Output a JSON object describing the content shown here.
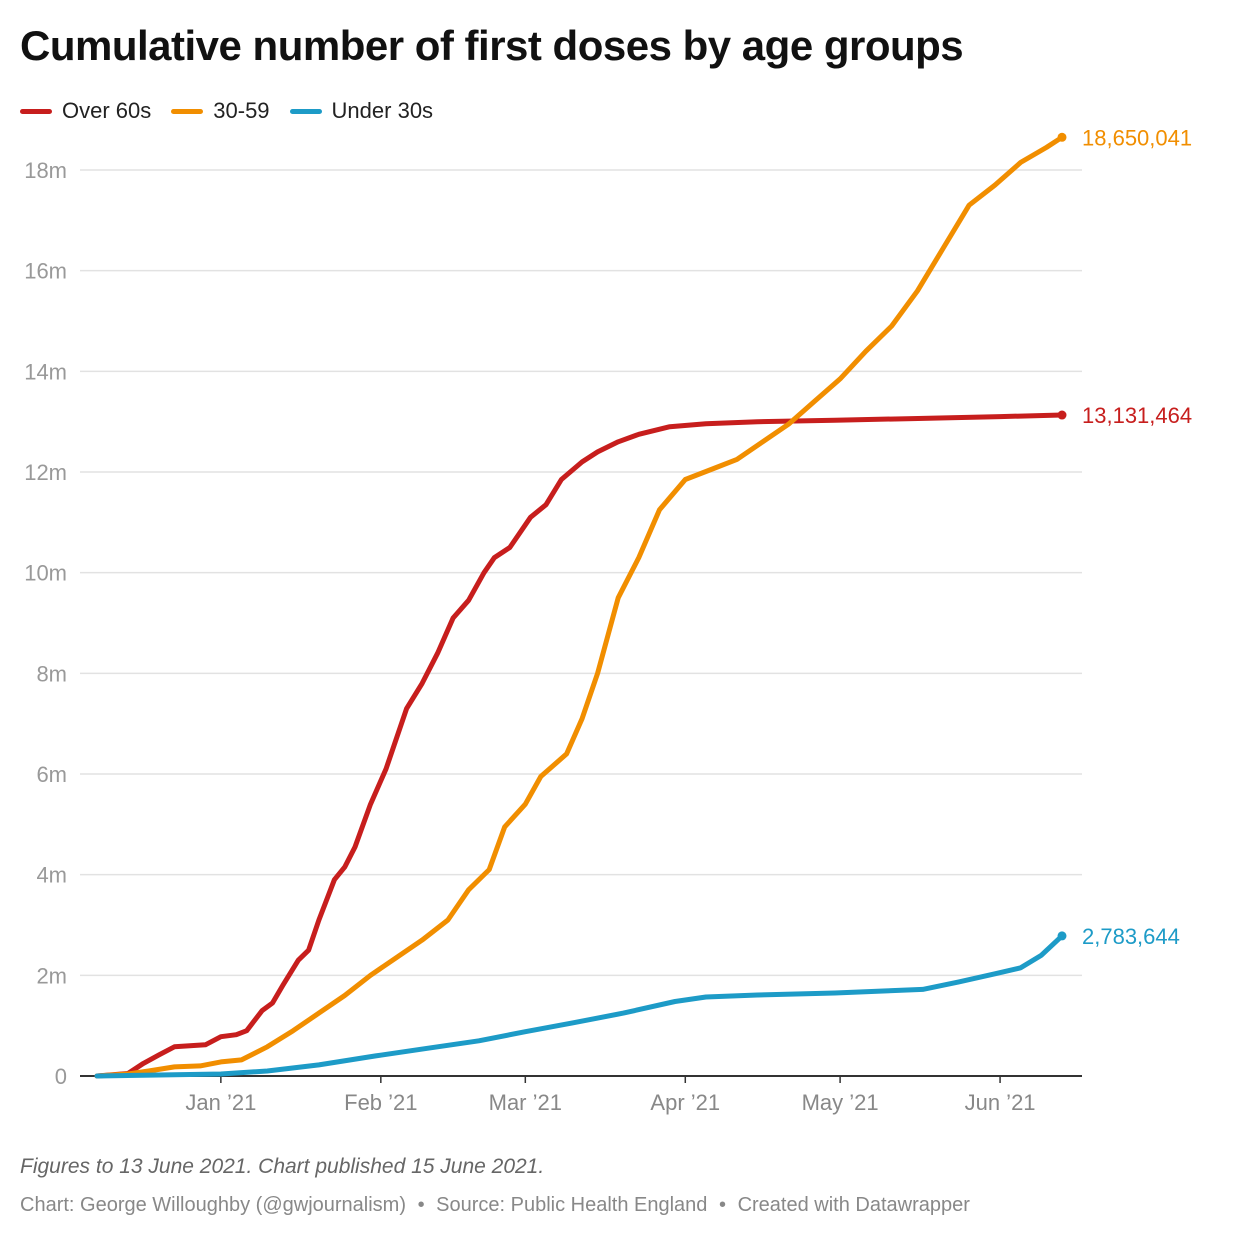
{
  "title": "Cumulative number of first doses by age groups",
  "note": "Figures to 13 June 2021. Chart published 15 June 2021.",
  "credit": {
    "chart": "Chart: George Willoughby (@gwjournalism)",
    "source": "Source: Public Health England",
    "tool": "Created with Datawrapper",
    "separator": "•"
  },
  "chart_data": {
    "type": "line",
    "title": "Cumulative number of first doses by age groups",
    "xlabel": "",
    "ylabel": "",
    "x_range": [
      "2020-12-08",
      "2021-06-13"
    ],
    "ylim": [
      0,
      19000000
    ],
    "y_ticks": [
      {
        "value": 0,
        "label": "0"
      },
      {
        "value": 2000000,
        "label": "2m"
      },
      {
        "value": 4000000,
        "label": "4m"
      },
      {
        "value": 6000000,
        "label": "6m"
      },
      {
        "value": 8000000,
        "label": "8m"
      },
      {
        "value": 10000000,
        "label": "10m"
      },
      {
        "value": 12000000,
        "label": "12m"
      },
      {
        "value": 14000000,
        "label": "14m"
      },
      {
        "value": 16000000,
        "label": "16m"
      },
      {
        "value": 18000000,
        "label": "18m"
      }
    ],
    "x_ticks": [
      {
        "date": "2021-01-01",
        "label": "Jan ’21"
      },
      {
        "date": "2021-02-01",
        "label": "Feb ’21"
      },
      {
        "date": "2021-03-01",
        "label": "Mar ’21"
      },
      {
        "date": "2021-04-01",
        "label": "Apr ’21"
      },
      {
        "date": "2021-05-01",
        "label": "May ’21"
      },
      {
        "date": "2021-06-01",
        "label": "Jun ’21"
      }
    ],
    "grid": true,
    "legend_position": "top-left",
    "series": [
      {
        "name": "Over 60s",
        "color": "#c71e1d",
        "end_label": "13,131,464",
        "points": [
          [
            "2020-12-08",
            0
          ],
          [
            "2020-12-14",
            50000
          ],
          [
            "2020-12-17",
            250000
          ],
          [
            "2020-12-20",
            420000
          ],
          [
            "2020-12-23",
            580000
          ],
          [
            "2020-12-26",
            600000
          ],
          [
            "2020-12-29",
            620000
          ],
          [
            "2021-01-01",
            780000
          ],
          [
            "2021-01-04",
            820000
          ],
          [
            "2021-01-06",
            900000
          ],
          [
            "2021-01-09",
            1300000
          ],
          [
            "2021-01-11",
            1450000
          ],
          [
            "2021-01-13",
            1800000
          ],
          [
            "2021-01-16",
            2300000
          ],
          [
            "2021-01-18",
            2500000
          ],
          [
            "2021-01-20",
            3100000
          ],
          [
            "2021-01-23",
            3900000
          ],
          [
            "2021-01-25",
            4150000
          ],
          [
            "2021-01-27",
            4550000
          ],
          [
            "2021-01-30",
            5400000
          ],
          [
            "2021-02-02",
            6100000
          ],
          [
            "2021-02-06",
            7300000
          ],
          [
            "2021-02-09",
            7800000
          ],
          [
            "2021-02-12",
            8400000
          ],
          [
            "2021-02-15",
            9100000
          ],
          [
            "2021-02-18",
            9450000
          ],
          [
            "2021-02-21",
            10000000
          ],
          [
            "2021-02-23",
            10300000
          ],
          [
            "2021-02-26",
            10500000
          ],
          [
            "2021-03-02",
            11100000
          ],
          [
            "2021-03-05",
            11350000
          ],
          [
            "2021-03-08",
            11850000
          ],
          [
            "2021-03-12",
            12200000
          ],
          [
            "2021-03-15",
            12400000
          ],
          [
            "2021-03-19",
            12600000
          ],
          [
            "2021-03-23",
            12750000
          ],
          [
            "2021-03-29",
            12900000
          ],
          [
            "2021-04-05",
            12960000
          ],
          [
            "2021-04-15",
            13000000
          ],
          [
            "2021-04-30",
            13030000
          ],
          [
            "2021-05-15",
            13060000
          ],
          [
            "2021-06-01",
            13100000
          ],
          [
            "2021-06-13",
            13131464
          ]
        ]
      },
      {
        "name": "30-59",
        "color": "#f18e00",
        "end_label": "18,650,041",
        "points": [
          [
            "2020-12-08",
            0
          ],
          [
            "2020-12-14",
            40000
          ],
          [
            "2020-12-18",
            100000
          ],
          [
            "2020-12-23",
            180000
          ],
          [
            "2020-12-28",
            200000
          ],
          [
            "2021-01-01",
            280000
          ],
          [
            "2021-01-05",
            320000
          ],
          [
            "2021-01-10",
            580000
          ],
          [
            "2021-01-15",
            900000
          ],
          [
            "2021-01-20",
            1250000
          ],
          [
            "2021-01-25",
            1600000
          ],
          [
            "2021-01-30",
            2000000
          ],
          [
            "2021-02-04",
            2350000
          ],
          [
            "2021-02-09",
            2700000
          ],
          [
            "2021-02-14",
            3100000
          ],
          [
            "2021-02-18",
            3700000
          ],
          [
            "2021-02-22",
            4100000
          ],
          [
            "2021-02-25",
            4950000
          ],
          [
            "2021-03-01",
            5400000
          ],
          [
            "2021-03-04",
            5950000
          ],
          [
            "2021-03-09",
            6400000
          ],
          [
            "2021-03-12",
            7100000
          ],
          [
            "2021-03-15",
            8000000
          ],
          [
            "2021-03-19",
            9500000
          ],
          [
            "2021-03-23",
            10300000
          ],
          [
            "2021-03-27",
            11250000
          ],
          [
            "2021-04-01",
            11850000
          ],
          [
            "2021-04-06",
            12050000
          ],
          [
            "2021-04-11",
            12250000
          ],
          [
            "2021-04-16",
            12600000
          ],
          [
            "2021-04-21",
            12950000
          ],
          [
            "2021-04-26",
            13400000
          ],
          [
            "2021-05-01",
            13850000
          ],
          [
            "2021-05-06",
            14400000
          ],
          [
            "2021-05-11",
            14900000
          ],
          [
            "2021-05-16",
            15600000
          ],
          [
            "2021-05-21",
            16450000
          ],
          [
            "2021-05-26",
            17300000
          ],
          [
            "2021-05-31",
            17700000
          ],
          [
            "2021-06-05",
            18150000
          ],
          [
            "2021-06-10",
            18450000
          ],
          [
            "2021-06-13",
            18650041
          ]
        ]
      },
      {
        "name": "Under 30s",
        "color": "#1d9bc7",
        "end_label": "2,783,644",
        "points": [
          [
            "2020-12-08",
            0
          ],
          [
            "2020-12-20",
            20000
          ],
          [
            "2021-01-01",
            40000
          ],
          [
            "2021-01-10",
            100000
          ],
          [
            "2021-01-20",
            220000
          ],
          [
            "2021-01-31",
            400000
          ],
          [
            "2021-02-10",
            550000
          ],
          [
            "2021-02-20",
            700000
          ],
          [
            "2021-03-01",
            880000
          ],
          [
            "2021-03-10",
            1050000
          ],
          [
            "2021-03-20",
            1250000
          ],
          [
            "2021-03-30",
            1480000
          ],
          [
            "2021-04-05",
            1570000
          ],
          [
            "2021-04-15",
            1610000
          ],
          [
            "2021-04-30",
            1650000
          ],
          [
            "2021-05-10",
            1690000
          ],
          [
            "2021-05-17",
            1720000
          ],
          [
            "2021-05-24",
            1870000
          ],
          [
            "2021-05-31",
            2030000
          ],
          [
            "2021-06-05",
            2150000
          ],
          [
            "2021-06-09",
            2400000
          ],
          [
            "2021-06-13",
            2783644
          ]
        ]
      }
    ]
  }
}
